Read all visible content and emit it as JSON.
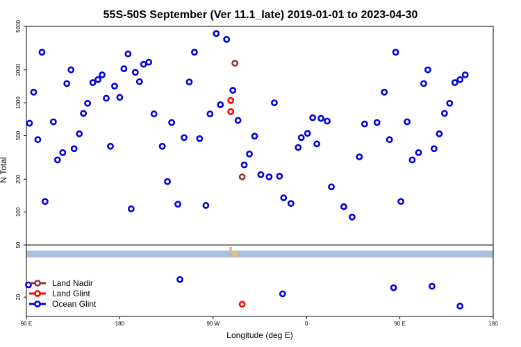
{
  "chart_data": {
    "type": "scatter",
    "title": "55S-50S September (Ver 11.1_late)   2019-01-01 to 2023-04-30",
    "xlabel": "Longitude (deg E)",
    "ylabel": "N Total",
    "x_ticks": [
      {
        "value": 90,
        "label": "90 E"
      },
      {
        "value": 180,
        "label": "180"
      },
      {
        "value": 270,
        "label": "90 W"
      },
      {
        "value": 360,
        "label": "0"
      },
      {
        "value": 450,
        "label": "90 E"
      },
      {
        "value": 540,
        "label": "180"
      }
    ],
    "xlim": [
      90,
      540
    ],
    "y_scale": "log",
    "upper_panel": {
      "ylim": [
        50,
        5000
      ],
      "y_ticks": [
        {
          "value": 5000,
          "label": "5000"
        },
        {
          "value": 2000,
          "label": "2000"
        },
        {
          "value": 1000,
          "label": "1000"
        },
        {
          "value": 500,
          "label": "500"
        },
        {
          "value": 200,
          "label": "200"
        },
        {
          "value": 100,
          "label": "100"
        },
        {
          "value": 50,
          "label": "50"
        }
      ]
    },
    "lower_panel": {
      "ylim": [
        15,
        40
      ],
      "y_ticks": [
        {
          "value": 20,
          "label": "20"
        }
      ]
    },
    "legend_position": "bottom-left",
    "series": [
      {
        "name": "Land Nadir",
        "color": "#993333",
        "points": [
          {
            "x": 291,
            "y": 2300
          },
          {
            "x": 298,
            "y": 210
          }
        ]
      },
      {
        "name": "Land Glint",
        "color": "#ff0000",
        "points": [
          {
            "x": 287,
            "y": 1050
          },
          {
            "x": 287,
            "y": 830
          },
          {
            "x": 298,
            "y": 18
          }
        ]
      },
      {
        "name": "Ocean Glint",
        "color": "#0000dd",
        "points": [
          {
            "x": 93,
            "y": 650
          },
          {
            "x": 97,
            "y": 1250
          },
          {
            "x": 101,
            "y": 460
          },
          {
            "x": 105,
            "y": 2900
          },
          {
            "x": 108,
            "y": 125
          },
          {
            "x": 116,
            "y": 670
          },
          {
            "x": 120,
            "y": 300
          },
          {
            "x": 125,
            "y": 350
          },
          {
            "x": 129,
            "y": 1500
          },
          {
            "x": 133,
            "y": 2000
          },
          {
            "x": 136,
            "y": 380
          },
          {
            "x": 141,
            "y": 520
          },
          {
            "x": 145,
            "y": 800
          },
          {
            "x": 149,
            "y": 990
          },
          {
            "x": 154,
            "y": 1530
          },
          {
            "x": 159,
            "y": 1630
          },
          {
            "x": 163,
            "y": 1800
          },
          {
            "x": 167,
            "y": 1100
          },
          {
            "x": 171,
            "y": 400
          },
          {
            "x": 175,
            "y": 1420
          },
          {
            "x": 180,
            "y": 1120
          },
          {
            "x": 184,
            "y": 2050
          },
          {
            "x": 188,
            "y": 2800
          },
          {
            "x": 191,
            "y": 107
          },
          {
            "x": 195,
            "y": 1900
          },
          {
            "x": 199,
            "y": 1560
          },
          {
            "x": 203,
            "y": 2250
          },
          {
            "x": 208,
            "y": 2350
          },
          {
            "x": 213,
            "y": 790
          },
          {
            "x": 221,
            "y": 400
          },
          {
            "x": 226,
            "y": 190
          },
          {
            "x": 230,
            "y": 660
          },
          {
            "x": 236,
            "y": 118
          },
          {
            "x": 242,
            "y": 480
          },
          {
            "x": 247,
            "y": 1550
          },
          {
            "x": 252,
            "y": 2900
          },
          {
            "x": 257,
            "y": 470
          },
          {
            "x": 263,
            "y": 115
          },
          {
            "x": 267,
            "y": 790
          },
          {
            "x": 273,
            "y": 4300
          },
          {
            "x": 277,
            "y": 960
          },
          {
            "x": 283,
            "y": 3800
          },
          {
            "x": 289,
            "y": 1300
          },
          {
            "x": 294,
            "y": 690
          },
          {
            "x": 300,
            "y": 270
          },
          {
            "x": 305,
            "y": 340
          },
          {
            "x": 310,
            "y": 495
          },
          {
            "x": 316,
            "y": 220
          },
          {
            "x": 324,
            "y": 210
          },
          {
            "x": 329,
            "y": 1000
          },
          {
            "x": 334,
            "y": 213
          },
          {
            "x": 338,
            "y": 135
          },
          {
            "x": 345,
            "y": 120
          },
          {
            "x": 352,
            "y": 390
          },
          {
            "x": 355,
            "y": 480
          },
          {
            "x": 361,
            "y": 525
          },
          {
            "x": 366,
            "y": 730
          },
          {
            "x": 370,
            "y": 420
          },
          {
            "x": 374,
            "y": 720
          },
          {
            "x": 380,
            "y": 680
          },
          {
            "x": 384,
            "y": 170
          },
          {
            "x": 396,
            "y": 112
          },
          {
            "x": 404,
            "y": 90
          },
          {
            "x": 411,
            "y": 320
          },
          {
            "x": 416,
            "y": 640
          },
          {
            "x": 428,
            "y": 660
          },
          {
            "x": 435,
            "y": 1250
          },
          {
            "x": 440,
            "y": 460
          },
          {
            "x": 446,
            "y": 2900
          },
          {
            "x": 451,
            "y": 125
          },
          {
            "x": 457,
            "y": 670
          },
          {
            "x": 462,
            "y": 300
          },
          {
            "x": 468,
            "y": 350
          },
          {
            "x": 473,
            "y": 1500
          },
          {
            "x": 477,
            "y": 2000
          },
          {
            "x": 483,
            "y": 380
          },
          {
            "x": 488,
            "y": 520
          },
          {
            "x": 493,
            "y": 800
          },
          {
            "x": 498,
            "y": 990
          },
          {
            "x": 503,
            "y": 1530
          },
          {
            "x": 508,
            "y": 1630
          },
          {
            "x": 513,
            "y": 1800
          },
          {
            "x": 92,
            "y": 24
          },
          {
            "x": 238,
            "y": 26
          },
          {
            "x": 337,
            "y": 21
          },
          {
            "x": 444,
            "y": 23
          },
          {
            "x": 481,
            "y": 23.5
          },
          {
            "x": 508,
            "y": 17.5
          }
        ]
      }
    ],
    "colors": {
      "band": "#a8c0e0",
      "band_marks": "#f0c060",
      "frame": "#000000"
    }
  }
}
